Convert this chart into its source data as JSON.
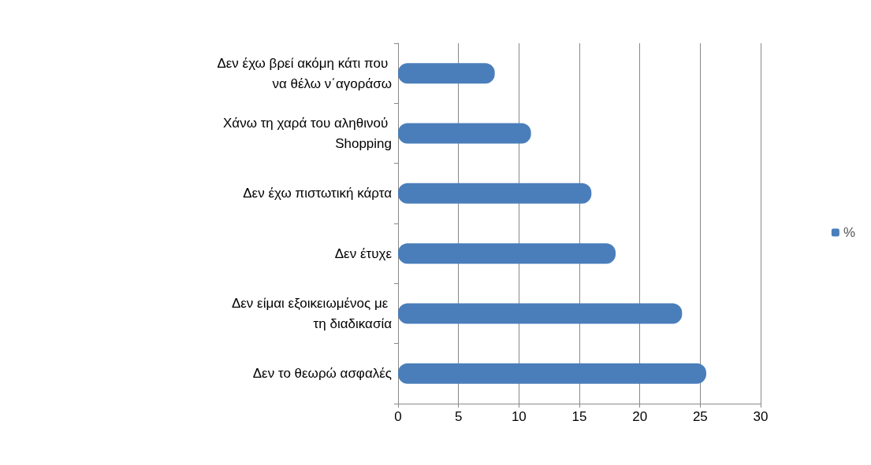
{
  "chart_data": {
    "type": "bar",
    "orientation": "horizontal",
    "categories": [
      "Δεν έχω βρεί ακόμη κάτι που να θέλω ν΄αγοράσω",
      "Χάνω τη χαρά του αληθινού Shopping",
      "Δεν έχω πιστωτική κάρτα",
      "Δεν έτυχε",
      "Δεν είμαι εξοικειωμένος με τη διαδικασία",
      "Δεν το θεωρώ ασφαλές"
    ],
    "series": [
      {
        "name": "%",
        "color": "#4a7ebb",
        "values": [
          8,
          11,
          16,
          18,
          23.5,
          25.5
        ]
      }
    ],
    "xlim": [
      0,
      30
    ],
    "xticks": [
      0,
      5,
      10,
      15,
      20,
      25,
      30
    ],
    "grid": "x",
    "legend": "right"
  }
}
